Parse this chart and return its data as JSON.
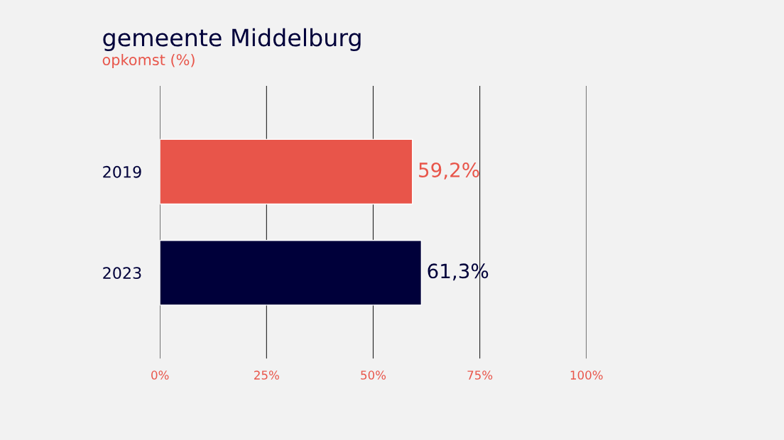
{
  "chart_data": {
    "type": "bar",
    "orientation": "horizontal",
    "title": "gemeente Middelburg",
    "subtitle": "opkomst (%)",
    "categories": [
      "2019",
      "2023"
    ],
    "values": [
      59.2,
      61.3
    ],
    "colors": [
      "#e8554a",
      "#00003a"
    ],
    "value_labels": [
      "59,2%",
      "61,3%"
    ],
    "xlim": [
      0,
      100
    ],
    "xticks": [
      {
        "value": 0,
        "label": "0%"
      },
      {
        "value": 25,
        "label": "25%"
      },
      {
        "value": 50,
        "label": "50%"
      },
      {
        "value": 75,
        "label": "75%"
      },
      {
        "value": 100,
        "label": "100%"
      }
    ],
    "grid": "x",
    "legend": false
  }
}
